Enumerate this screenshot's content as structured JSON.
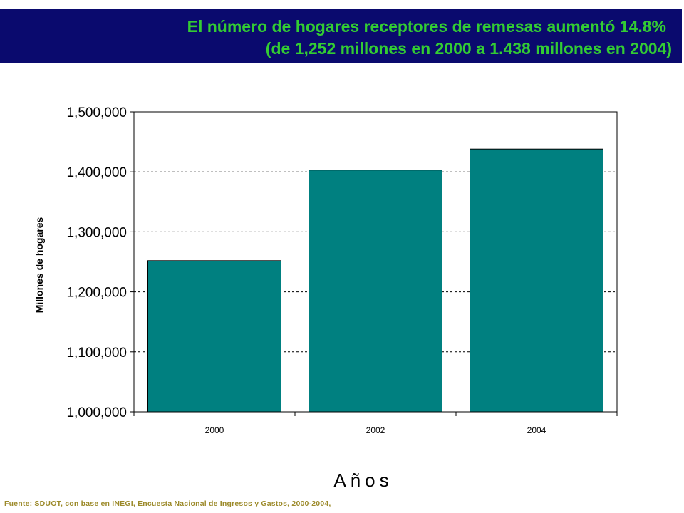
{
  "header": {
    "title_line1": "El número de hogares receptores de remesas aumentó 14.8%",
    "title_line2": "(de 1,252 millones en 2000 a 1.438 millones en 2004)"
  },
  "colors": {
    "banner": "#0a0a6e",
    "title_text": "#33cc33",
    "bar_fill": "#008080",
    "footer_text": "#9c8a2a"
  },
  "chart_data": {
    "type": "bar",
    "categories": [
      "2000",
      "2002",
      "2004"
    ],
    "values": [
      1252000,
      1403000,
      1438000
    ],
    "xlabel": "Años",
    "ylabel": "Millones de hogares",
    "ylim": [
      1000000,
      1500000
    ],
    "yticks": [
      1000000,
      1100000,
      1200000,
      1300000,
      1400000,
      1500000
    ],
    "ytick_labels": [
      "1,000,000",
      "1,100,000",
      "1,200,000",
      "1,300,000",
      "1,400,000",
      "1,500,000"
    ],
    "grid": "horizontal dashed"
  },
  "footer": {
    "source": "Fuente: SDUOT, con base en INEGI, Encuesta Nacional de Ingresos y Gastos, 2000-2004,"
  }
}
